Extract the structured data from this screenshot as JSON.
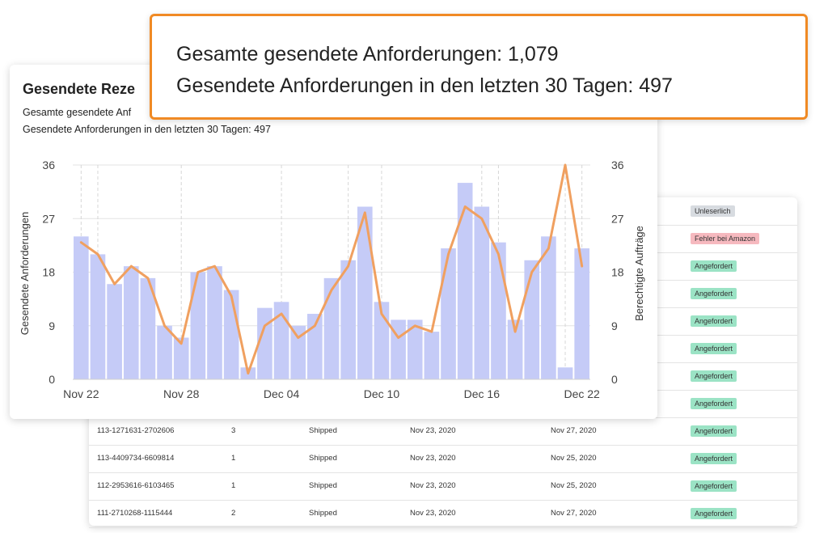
{
  "callout": {
    "line1": "Gesamte gesendete Anforderungen: 1,079",
    "line2": "Gesendete Anforderungen in den letzten 30 Tagen: 497"
  },
  "chart_card": {
    "title": "Gesendete Reze",
    "subtitle1": "Gesamte gesendete Anf",
    "subtitle2": "Gesendete Anforderungen in den letzten 30 Tagen: 497"
  },
  "chart_data": {
    "type": "bar",
    "categories": [
      "Nov 22",
      "Nov 23",
      "Nov 24",
      "Nov 25",
      "Nov 26",
      "Nov 27",
      "Nov 28",
      "Nov 29",
      "Nov 30",
      "Dec 01",
      "Dec 02",
      "Dec 03",
      "Dec 04",
      "Dec 05",
      "Dec 06",
      "Dec 07",
      "Dec 08",
      "Dec 09",
      "Dec 10",
      "Dec 11",
      "Dec 12",
      "Dec 13",
      "Dec 14",
      "Dec 15",
      "Dec 16",
      "Dec 17",
      "Dec 18",
      "Dec 19",
      "Dec 20",
      "Dec 21",
      "Dec 22"
    ],
    "x_tick_labels": [
      "Nov 22",
      "Nov 28",
      "Dec 04",
      "Dec 10",
      "Dec 16",
      "Dec 22"
    ],
    "y_ticks": [
      "0",
      "9",
      "18",
      "27",
      "36"
    ],
    "ylabel": "Gesendete Anforderungen",
    "y2label": "Berechtigte Aufträge",
    "ylim": [
      0,
      36
    ],
    "y2lim": [
      0,
      36
    ],
    "series": [
      {
        "type": "bar",
        "color": "#c5cbf7",
        "values": [
          24,
          21,
          16,
          19,
          17,
          9,
          7,
          18,
          19,
          15,
          2,
          12,
          13,
          9,
          11,
          17,
          20,
          29,
          13,
          10,
          10,
          8,
          22,
          33,
          29,
          23,
          10,
          20,
          24,
          2,
          22
        ]
      },
      {
        "type": "line",
        "color": "#f0a060",
        "values": [
          23,
          21,
          16,
          19,
          17,
          9,
          6,
          18,
          19,
          14,
          1,
          9,
          11,
          7,
          9,
          15,
          19,
          28,
          11,
          7,
          9,
          8,
          21,
          29,
          27,
          21,
          8,
          18,
          22,
          36,
          19
        ]
      }
    ],
    "grid": true
  },
  "table": {
    "rows": [
      {
        "order": "",
        "qty": "",
        "status": "",
        "date1": "",
        "date2": "",
        "badge": "Unleserlich",
        "badge_type": "grey"
      },
      {
        "order": "",
        "qty": "",
        "status": "",
        "date1": "",
        "date2": "",
        "badge": "Fehler bei Amazon",
        "badge_type": "red"
      },
      {
        "order": "",
        "qty": "",
        "status": "",
        "date1": "",
        "date2": "",
        "badge": "Angefordert",
        "badge_type": "green"
      },
      {
        "order": "",
        "qty": "",
        "status": "",
        "date1": "",
        "date2": "",
        "badge": "Angefordert",
        "badge_type": "green"
      },
      {
        "order": "",
        "qty": "",
        "status": "",
        "date1": "",
        "date2": "",
        "badge": "Angefordert",
        "badge_type": "green"
      },
      {
        "order": "",
        "qty": "",
        "status": "",
        "date1": "",
        "date2": "",
        "badge": "Angefordert",
        "badge_type": "green"
      },
      {
        "order": "",
        "qty": "",
        "status": "",
        "date1": "",
        "date2": "",
        "badge": "Angefordert",
        "badge_type": "green"
      },
      {
        "order": "",
        "qty": "",
        "status": "",
        "date1": "",
        "date2": "",
        "badge": "Angefordert",
        "badge_type": "green"
      },
      {
        "order": "113-1271631-2702606",
        "qty": "3",
        "status": "Shipped",
        "date1": "Nov 23, 2020",
        "date2": "Nov 27, 2020",
        "badge": "Angefordert",
        "badge_type": "green"
      },
      {
        "order": "113-4409734-6609814",
        "qty": "1",
        "status": "Shipped",
        "date1": "Nov 23, 2020",
        "date2": "Nov 25, 2020",
        "badge": "Angefordert",
        "badge_type": "green"
      },
      {
        "order": "112-2953616-6103465",
        "qty": "1",
        "status": "Shipped",
        "date1": "Nov 23, 2020",
        "date2": "Nov 25, 2020",
        "badge": "Angefordert",
        "badge_type": "green"
      },
      {
        "order": "111-2710268-1115444",
        "qty": "2",
        "status": "Shipped",
        "date1": "Nov 23, 2020",
        "date2": "Nov 27, 2020",
        "badge": "Angefordert",
        "badge_type": "green"
      }
    ]
  }
}
